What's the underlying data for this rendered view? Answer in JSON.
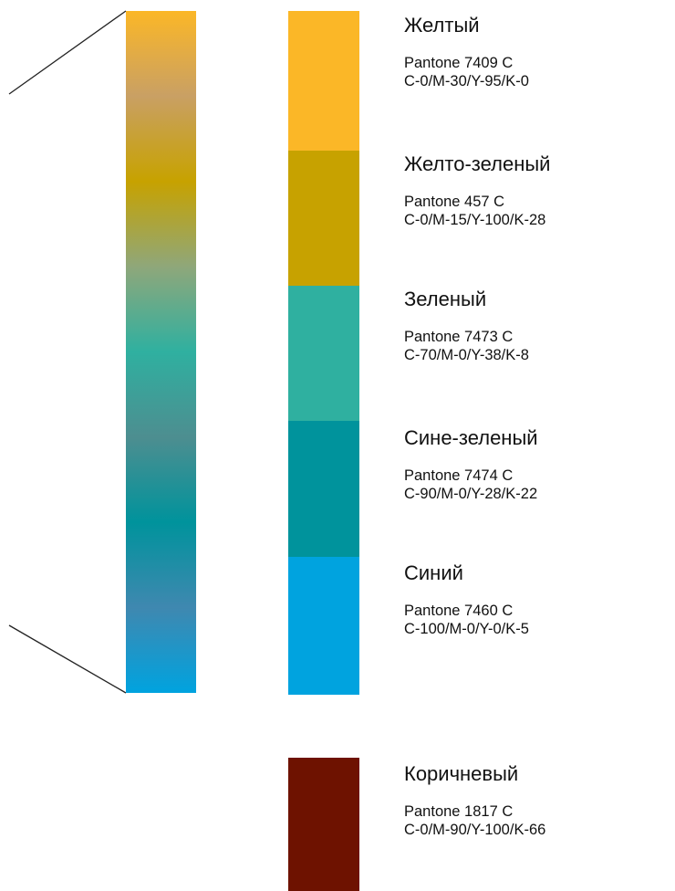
{
  "palette": [
    {
      "name": "Желтый",
      "pantone": "Pantone 7409 C",
      "cmyk": "C-0/M-30/Y-95/K-0",
      "color": "#FBB727"
    },
    {
      "name": "Желто-зеленый",
      "pantone": "Pantone 457 C",
      "cmyk": "C-0/M-15/Y-100/K-28",
      "color": "#C7A200"
    },
    {
      "name": "Зеленый",
      "pantone": "Pantone 7473 C",
      "cmyk": "C-70/M-0/Y-38/K-8",
      "color": "#2FB0A0"
    },
    {
      "name": "Сине-зеленый",
      "pantone": "Pantone 7474 C",
      "cmyk": "C-90/M-0/Y-28/K-22",
      "color": "#00939C"
    },
    {
      "name": "Синий",
      "pantone": "Pantone 7460 C",
      "cmyk": "C-100/M-0/Y-0/K-5",
      "color": "#00A3DF"
    },
    {
      "name": "Коричневый",
      "pantone": "Pantone 1817 C",
      "cmyk": "C-0/M-90/Y-100/K-66",
      "color": "#6E1200"
    }
  ],
  "gradient_stops": [
    "#FBB727",
    "#C9A064",
    "#C7A200",
    "#8FA77A",
    "#2FB0A0",
    "#4D8E90",
    "#00939C",
    "#3F88B0",
    "#00A3DF"
  ],
  "connector_color": "#222222"
}
